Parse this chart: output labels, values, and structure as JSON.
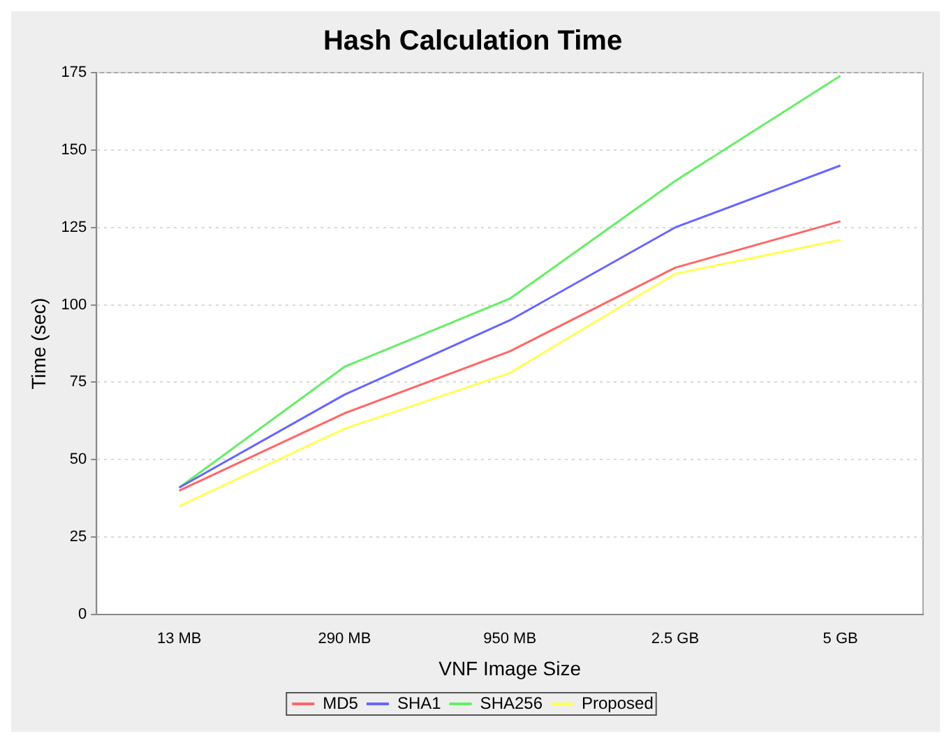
{
  "chart_data": {
    "type": "line",
    "title": "Hash Calculation Time",
    "xlabel": "VNF Image Size",
    "ylabel": "Time (sec)",
    "categories": [
      "13 MB",
      "290 MB",
      "950 MB",
      "2.5 GB",
      "5 GB"
    ],
    "series": [
      {
        "name": "MD5",
        "color": "#ff6666",
        "values": [
          40,
          65,
          85,
          112,
          127
        ]
      },
      {
        "name": "SHA1",
        "color": "#6666ff",
        "values": [
          41,
          71,
          95,
          125,
          145
        ]
      },
      {
        "name": "SHA256",
        "color": "#66ee66",
        "values": [
          41,
          80,
          102,
          140,
          174
        ]
      },
      {
        "name": "Proposed",
        "color": "#ffff55",
        "values": [
          35,
          60,
          78,
          110,
          121
        ]
      }
    ],
    "ylim": [
      0,
      175
    ],
    "yticks": [
      0,
      25,
      50,
      75,
      100,
      125,
      150,
      175
    ],
    "grid": "y",
    "legend": "bottom",
    "marker": "none",
    "line_style": "solid"
  }
}
